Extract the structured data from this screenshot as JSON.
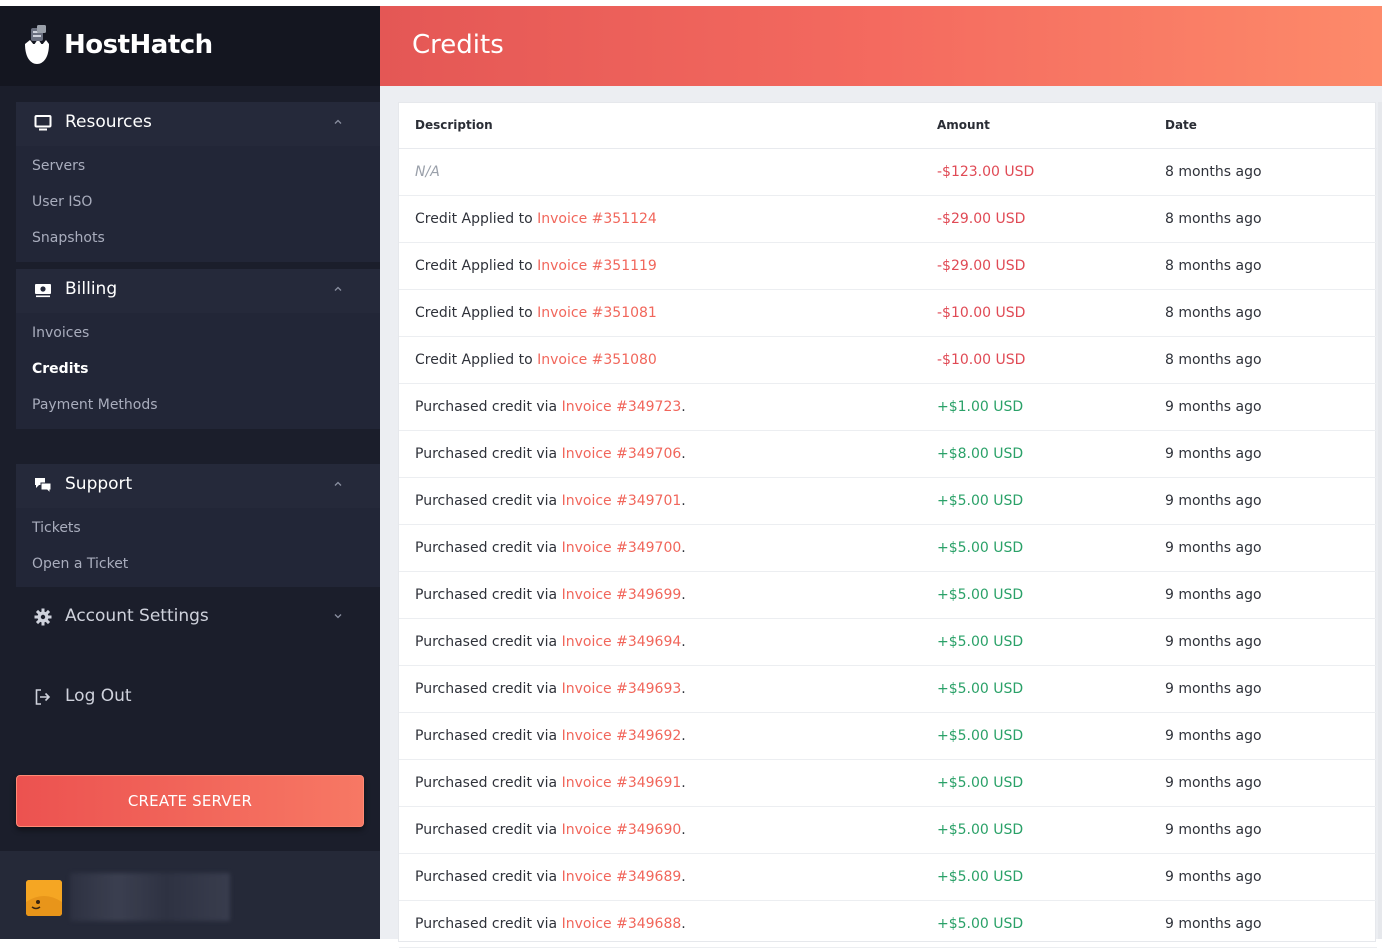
{
  "app": {
    "logo_text": "HostHatch"
  },
  "sidebar": {
    "groups": [
      {
        "title": "Resources",
        "icon": "monitor-icon",
        "items": [
          {
            "label": "Servers"
          },
          {
            "label": "User ISO"
          },
          {
            "label": "Snapshots"
          }
        ]
      },
      {
        "title": "Billing",
        "icon": "money-bill-icon",
        "items": [
          {
            "label": "Invoices"
          },
          {
            "label": "Credits"
          },
          {
            "label": "Payment Methods"
          }
        ]
      },
      {
        "title": "Support",
        "icon": "chat-bubbles-icon",
        "items": [
          {
            "label": "Tickets"
          },
          {
            "label": "Open a Ticket"
          }
        ]
      }
    ],
    "account_settings": "Account Settings",
    "logout": "Log Out",
    "create_button": "CREATE SERVER"
  },
  "page": {
    "title": "Credits"
  },
  "table": {
    "columns": [
      "Description",
      "Amount",
      "Date"
    ],
    "rows": [
      {
        "text": "N/A",
        "invoice": "",
        "suffix": "",
        "amount": "-$123.00 USD",
        "sign": "neg",
        "date": "8 months ago"
      },
      {
        "text": "Credit Applied to ",
        "invoice": "Invoice #351124",
        "suffix": "",
        "amount": "-$29.00 USD",
        "sign": "neg",
        "date": "8 months ago"
      },
      {
        "text": "Credit Applied to ",
        "invoice": "Invoice #351119",
        "suffix": "",
        "amount": "-$29.00 USD",
        "sign": "neg",
        "date": "8 months ago"
      },
      {
        "text": "Credit Applied to ",
        "invoice": "Invoice #351081",
        "suffix": "",
        "amount": "-$10.00 USD",
        "sign": "neg",
        "date": "8 months ago"
      },
      {
        "text": "Credit Applied to ",
        "invoice": "Invoice #351080",
        "suffix": "",
        "amount": "-$10.00 USD",
        "sign": "neg",
        "date": "8 months ago"
      },
      {
        "text": "Purchased credit via ",
        "invoice": "Invoice #349723",
        "suffix": ".",
        "amount": "+$1.00 USD",
        "sign": "pos",
        "date": "9 months ago"
      },
      {
        "text": "Purchased credit via ",
        "invoice": "Invoice #349706",
        "suffix": ".",
        "amount": "+$8.00 USD",
        "sign": "pos",
        "date": "9 months ago"
      },
      {
        "text": "Purchased credit via ",
        "invoice": "Invoice #349701",
        "suffix": ".",
        "amount": "+$5.00 USD",
        "sign": "pos",
        "date": "9 months ago"
      },
      {
        "text": "Purchased credit via ",
        "invoice": "Invoice #349700",
        "suffix": ".",
        "amount": "+$5.00 USD",
        "sign": "pos",
        "date": "9 months ago"
      },
      {
        "text": "Purchased credit via ",
        "invoice": "Invoice #349699",
        "suffix": ".",
        "amount": "+$5.00 USD",
        "sign": "pos",
        "date": "9 months ago"
      },
      {
        "text": "Purchased credit via ",
        "invoice": "Invoice #349694",
        "suffix": ".",
        "amount": "+$5.00 USD",
        "sign": "pos",
        "date": "9 months ago"
      },
      {
        "text": "Purchased credit via ",
        "invoice": "Invoice #349693",
        "suffix": ".",
        "amount": "+$5.00 USD",
        "sign": "pos",
        "date": "9 months ago"
      },
      {
        "text": "Purchased credit via ",
        "invoice": "Invoice #349692",
        "suffix": ".",
        "amount": "+$5.00 USD",
        "sign": "pos",
        "date": "9 months ago"
      },
      {
        "text": "Purchased credit via ",
        "invoice": "Invoice #349691",
        "suffix": ".",
        "amount": "+$5.00 USD",
        "sign": "pos",
        "date": "9 months ago"
      },
      {
        "text": "Purchased credit via ",
        "invoice": "Invoice #349690",
        "suffix": ".",
        "amount": "+$5.00 USD",
        "sign": "pos",
        "date": "9 months ago"
      },
      {
        "text": "Purchased credit via ",
        "invoice": "Invoice #349689",
        "suffix": ".",
        "amount": "+$5.00 USD",
        "sign": "pos",
        "date": "9 months ago"
      },
      {
        "text": "Purchased credit via ",
        "invoice": "Invoice #349688",
        "suffix": ".",
        "amount": "+$5.00 USD",
        "sign": "pos",
        "date": "9 months ago"
      }
    ]
  },
  "colors": {
    "accent": "#f1665b",
    "negative": "#e04a55",
    "positive": "#2aa168",
    "sidebar_bg": "#1b1e2b"
  }
}
